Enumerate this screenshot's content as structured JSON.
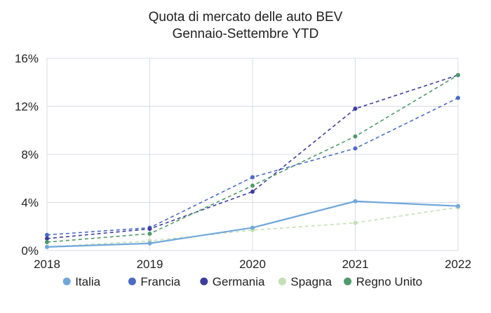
{
  "chart_data": {
    "type": "line",
    "title": [
      "Quota di mercato delle auto BEV",
      "Gennaio-Settembre YTD"
    ],
    "xlabel": "",
    "ylabel": "",
    "x": [
      "2018",
      "2019",
      "2020",
      "2021",
      "2022"
    ],
    "ylim": [
      0,
      16
    ],
    "y_ticks": [
      0,
      4,
      8,
      12,
      16
    ],
    "y_tick_labels": [
      "0%",
      "4%",
      "8%",
      "12%",
      "16%"
    ],
    "grid": true,
    "legend_position": "bottom",
    "series": [
      {
        "name": "Italia",
        "values": [
          0.3,
          0.6,
          1.9,
          4.1,
          3.7
        ],
        "color": "#6fa8dc",
        "dashed": false
      },
      {
        "name": "Francia",
        "values": [
          1.3,
          1.9,
          6.1,
          8.5,
          12.7
        ],
        "color": "#4a6cc4",
        "dashed": true
      },
      {
        "name": "Germania",
        "values": [
          1.0,
          1.8,
          4.9,
          11.8,
          14.6
        ],
        "color": "#3d3d9c",
        "dashed": true
      },
      {
        "name": "Spagna",
        "values": [
          0.3,
          0.8,
          1.7,
          2.3,
          3.6
        ],
        "color": "#c5e0b4",
        "dashed": true
      },
      {
        "name": "Regno Unito",
        "values": [
          0.7,
          1.4,
          5.4,
          9.5,
          14.6
        ],
        "color": "#4e9a6b",
        "dashed": true
      }
    ]
  }
}
